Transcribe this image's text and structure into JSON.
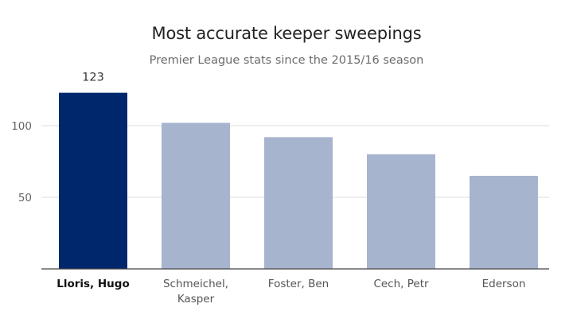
{
  "chart_data": {
    "type": "bar",
    "title": "Most accurate keeper sweepings",
    "subtitle": "Premier League stats since the 2015/16 season",
    "categories": [
      "Lloris, Hugo",
      "Schmeichel, Kasper",
      "Foster, Ben",
      "Cech, Petr",
      "Ederson"
    ],
    "category_lines": [
      [
        "Lloris, Hugo"
      ],
      [
        "Schmeichel,",
        "Kasper"
      ],
      [
        "Foster, Ben"
      ],
      [
        "Cech, Petr"
      ],
      [
        "Ederson"
      ]
    ],
    "values": [
      123,
      102,
      92,
      80,
      65
    ],
    "data_labels": [
      "123",
      "",
      "",
      "",
      ""
    ],
    "highlight_index": 0,
    "ylim": [
      0,
      130
    ],
    "yticks": [
      50,
      100
    ],
    "xlabel": "",
    "ylabel": "",
    "grid": true,
    "colors": {
      "highlight": "#00276b",
      "bar": "#a7b4ce",
      "grid": "#dddddd",
      "axis": "#444444"
    }
  }
}
